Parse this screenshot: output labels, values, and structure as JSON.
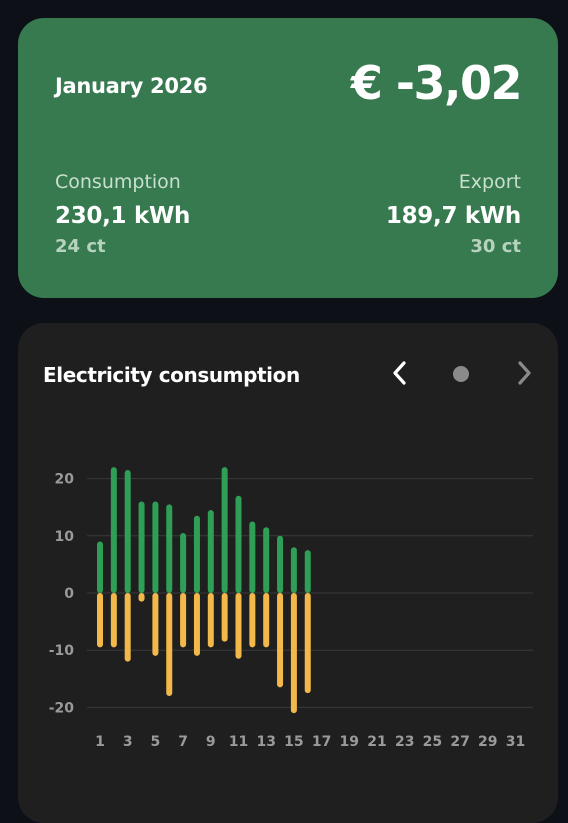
{
  "summary": {
    "month": "January 2026",
    "total": "€ -3,02",
    "consumption": {
      "label": "Consumption",
      "value": "230,1 kWh",
      "price": "24 ct"
    },
    "export": {
      "label": "Export",
      "value": "189,7 kWh",
      "price": "30 ct"
    }
  },
  "chart_card": {
    "title": "Electricity consumption",
    "prev_icon": "chevron-left-icon",
    "next_icon": "chevron-right-icon",
    "page_indicator": "dot"
  },
  "colors": {
    "summary_background": "#377a4f",
    "consumption_bar": "#2f9e57",
    "export_bar": "#f2b94a",
    "chart_background": "#1f1f1f",
    "next_disabled": "#8a8a8a"
  },
  "chart_data": {
    "type": "bar",
    "stacked": true,
    "x_ticks": [
      "1",
      "3",
      "5",
      "7",
      "9",
      "11",
      "13",
      "15",
      "17",
      "19",
      "21",
      "23",
      "25",
      "27",
      "29",
      "31"
    ],
    "y_ticks": [
      "20",
      "10",
      "0",
      "-10",
      "-20"
    ],
    "ylim": [
      -25,
      25
    ],
    "xlim": [
      1,
      31
    ],
    "grid": true,
    "days": [
      1,
      2,
      3,
      4,
      5,
      6,
      7,
      8,
      9,
      10,
      11,
      12,
      13,
      14,
      15,
      16
    ],
    "series": [
      {
        "color": "#2f9e57",
        "values": [
          9,
          22,
          21.5,
          16,
          16,
          15.5,
          10.5,
          13.5,
          14.5,
          22,
          17,
          12.5,
          11.5,
          10,
          8,
          7.5
        ]
      },
      {
        "color": "#f2b94a",
        "values": [
          -9.5,
          -9.5,
          -12,
          -1.5,
          -11,
          -18,
          -9.5,
          -11,
          -9.5,
          -8.5,
          -11.5,
          -9.5,
          -9.5,
          -16.5,
          -21,
          -17.5
        ]
      }
    ]
  }
}
